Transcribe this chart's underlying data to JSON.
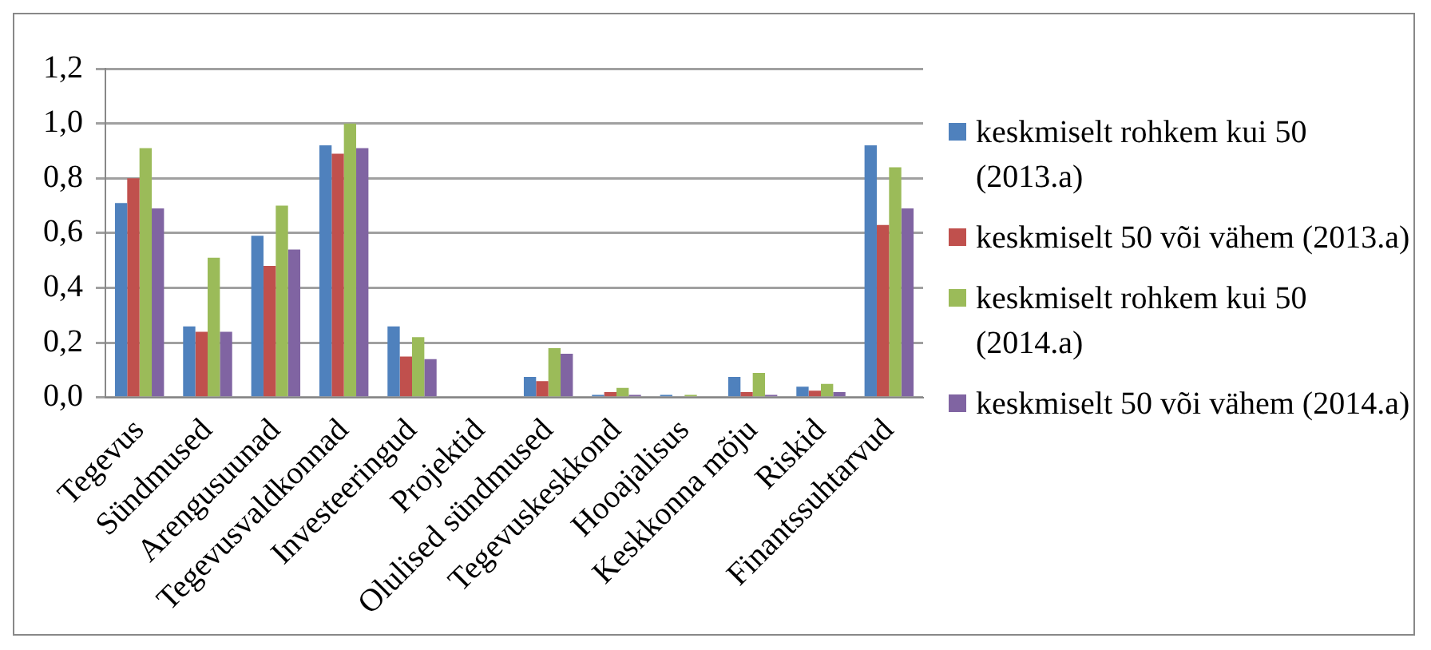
{
  "chart_data": {
    "type": "bar",
    "categories": [
      "Tegevus",
      "Sündmused",
      "Arengusuunad",
      "Tegevusvaldkonnad",
      "Investeeringud",
      "Projektid",
      "Olulised sündmused",
      "Tegevuskeskkond",
      "Hooajalisus",
      "Keskkonna mõju",
      "Riskid",
      "Finantssuhtarvud"
    ],
    "series": [
      {
        "name": "keskmiselt rohkem kui 50 (2013.a)",
        "color": "#4f81bd",
        "values": [
          0.71,
          0.26,
          0.59,
          0.92,
          0.26,
          0,
          0.075,
          0.01,
          0.01,
          0.075,
          0.04,
          0.92
        ]
      },
      {
        "name": "keskmiselt 50 või vähem (2013.a)",
        "color": "#c0504d",
        "values": [
          0.8,
          0.24,
          0.48,
          0.89,
          0.15,
          0,
          0.06,
          0.02,
          0,
          0.02,
          0.025,
          0.63
        ]
      },
      {
        "name": "keskmiselt rohkem kui 50 (2014.a)",
        "color": "#9bbb59",
        "values": [
          0.91,
          0.51,
          0.7,
          1.0,
          0.22,
          0,
          0.18,
          0.035,
          0.01,
          0.09,
          0.05,
          0.84
        ]
      },
      {
        "name": "keskmiselt 50 või vähem (2014.a)",
        "color": "#8064a2",
        "values": [
          0.69,
          0.24,
          0.54,
          0.91,
          0.14,
          0,
          0.16,
          0.01,
          0,
          0.01,
          0.02,
          0.69
        ]
      }
    ],
    "ylim": [
      0,
      1.2
    ],
    "yticks": [
      {
        "value": 0,
        "label": "0,0"
      },
      {
        "value": 0.2,
        "label": "0,2"
      },
      {
        "value": 0.4,
        "label": "0,4"
      },
      {
        "value": 0.6,
        "label": "0,6"
      },
      {
        "value": 0.8,
        "label": "0,8"
      },
      {
        "value": 1.0,
        "label": "1,0"
      },
      {
        "value": 1.2,
        "label": "1,2"
      }
    ],
    "grid": "y",
    "legend": "right"
  }
}
